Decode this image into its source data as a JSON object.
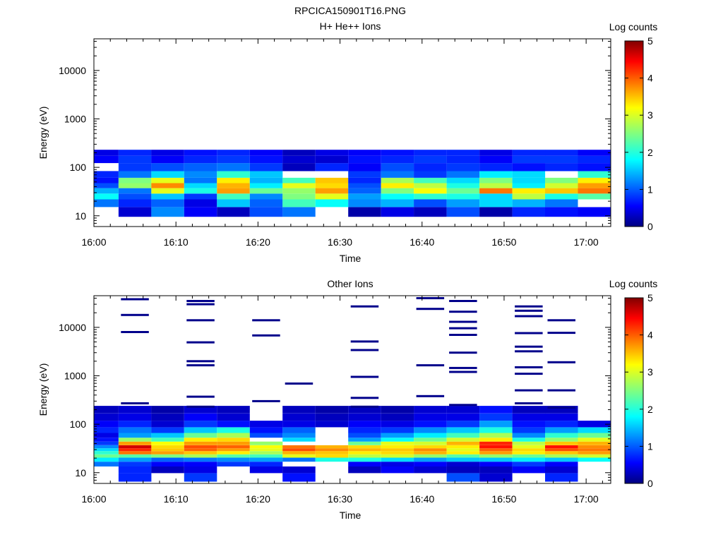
{
  "figure_title": "RPCICA150901T16.PNG",
  "colorbar": {
    "label": "Log counts",
    "ticks": [
      "0",
      "1",
      "2",
      "3",
      "4",
      "5"
    ],
    "range": [
      0,
      5
    ],
    "colormap": "jet"
  },
  "chart_data": [
    {
      "type": "heatmap",
      "title": "H+ He++ Ions",
      "xlabel": "Time",
      "ylabel": "Energy (eV)",
      "y_scale": "log",
      "ylim": [
        6,
        45000
      ],
      "xlim": [
        "16:00",
        "17:03"
      ],
      "x_ticks": [
        "16:00",
        "16:10",
        "16:20",
        "16:30",
        "16:40",
        "16:50",
        "17:00"
      ],
      "y_ticks": [
        "10",
        "100",
        "1000",
        "10000"
      ],
      "time_bins": [
        "16:01",
        "16:05",
        "16:09",
        "16:13",
        "16:17",
        "16:21",
        "16:25",
        "16:29",
        "16:33",
        "16:37",
        "16:41",
        "16:45",
        "16:49",
        "16:53",
        "16:57",
        "17:01"
      ],
      "time_bin_width_min": 4,
      "energy_bins_eV": [
        12,
        19,
        25,
        33,
        42,
        53,
        70,
        100,
        150,
        200
      ],
      "values": [
        [
          null,
          0.4,
          1.3,
          0.6,
          0.3,
          1.0,
          1.2,
          null,
          0.2,
          0.5,
          0.3,
          1.0,
          0.2,
          0.8,
          0.7,
          0.6
        ],
        [
          1.2,
          0.8,
          1.1,
          0.5,
          1.6,
          1.1,
          2.2,
          1.9,
          1.3,
          1.5,
          1.0,
          1.4,
          1.7,
          1.5,
          1.2,
          null
        ],
        [
          1.9,
          1.0,
          1.6,
          0.9,
          2.2,
          1.3,
          2.5,
          3.0,
          1.4,
          1.9,
          2.1,
          2.0,
          1.7,
          2.8,
          2.0,
          2.3
        ],
        [
          1.5,
          1.2,
          3.0,
          2.0,
          3.6,
          2.4,
          2.6,
          3.6,
          1.1,
          2.5,
          3.1,
          2.4,
          3.8,
          3.2,
          3.4,
          3.8
        ],
        [
          1.0,
          2.6,
          3.7,
          1.7,
          3.5,
          1.8,
          3.0,
          3.3,
          1.0,
          3.2,
          2.8,
          2.0,
          2.8,
          1.8,
          2.9,
          3.6
        ],
        [
          0.7,
          2.5,
          3.0,
          1.2,
          3.2,
          1.5,
          2.2,
          3.4,
          0.8,
          2.7,
          2.2,
          1.7,
          2.5,
          1.7,
          2.5,
          3.2
        ],
        [
          0.8,
          1.2,
          1.7,
          1.3,
          2.1,
          1.6,
          null,
          null,
          0.9,
          1.2,
          0.9,
          1.2,
          1.8,
          1.7,
          null,
          2.1
        ],
        [
          null,
          0.9,
          1.0,
          1.1,
          1.2,
          0.9,
          0.3,
          0.8,
          0.6,
          1.0,
          0.8,
          0.9,
          0.8,
          0.7,
          0.8,
          0.7
        ],
        [
          0.6,
          0.9,
          0.6,
          0.8,
          0.9,
          0.7,
          0.4,
          0.4,
          0.7,
          0.8,
          0.9,
          0.8,
          0.6,
          0.9,
          0.9,
          0.8
        ],
        [
          0.5,
          0.8,
          0.5,
          0.7,
          0.8,
          0.6,
          0.3,
          0.5,
          0.6,
          0.7,
          0.8,
          0.8,
          0.5,
          0.8,
          0.8,
          0.6
        ]
      ]
    },
    {
      "type": "heatmap",
      "title": "Other Ions",
      "xlabel": "Time",
      "ylabel": "Energy (eV)",
      "y_scale": "log",
      "ylim": [
        6,
        45000
      ],
      "xlim": [
        "16:00",
        "17:03"
      ],
      "x_ticks": [
        "16:00",
        "16:10",
        "16:20",
        "16:30",
        "16:40",
        "16:50",
        "17:00"
      ],
      "y_ticks": [
        "10",
        "100",
        "1000",
        "10000"
      ],
      "time_bins": [
        "16:01",
        "16:05",
        "16:09",
        "16:13",
        "16:17",
        "16:21",
        "16:25",
        "16:29",
        "16:33",
        "16:37",
        "16:41",
        "16:45",
        "16:49",
        "16:53",
        "16:57",
        "17:01"
      ],
      "time_bin_width_min": 4,
      "energy_bins_eV": [
        8,
        12,
        15,
        19,
        22,
        26,
        30,
        34,
        40,
        48,
        58,
        75,
        100,
        140,
        200
      ],
      "values": [
        [
          null,
          0.8,
          null,
          0.9,
          null,
          null,
          0.7,
          null,
          null,
          null,
          null,
          1.0,
          0.4,
          null,
          0.8,
          null
        ],
        [
          null,
          0.8,
          0.3,
          0.5,
          null,
          0.5,
          0.4,
          null,
          0.3,
          0.6,
          0.4,
          0.3,
          0.3,
          0.6,
          0.4,
          null
        ],
        [
          1.2,
          0.9,
          0.6,
          0.6,
          0.9,
          0.8,
          null,
          null,
          0.6,
          0.5,
          0.6,
          0.4,
          0.6,
          0.9,
          0.6,
          null
        ],
        [
          1.8,
          1.4,
          1.1,
          1.2,
          1.3,
          1.4,
          1.2,
          2.0,
          2.0,
          1.7,
          1.4,
          1.6,
          1.6,
          1.8,
          1.6,
          1.9
        ],
        [
          2.4,
          2.3,
          2.5,
          2.7,
          2.3,
          2.2,
          3.0,
          3.3,
          2.8,
          2.9,
          2.6,
          2.3,
          2.6,
          2.4,
          2.7,
          2.9
        ],
        [
          2.1,
          3.8,
          3.6,
          3.4,
          3.2,
          2.7,
          3.5,
          3.4,
          3.2,
          3.3,
          3.5,
          3.2,
          3.6,
          3.2,
          3.4,
          3.6
        ],
        [
          1.7,
          4.2,
          3.4,
          3.9,
          3.6,
          3.0,
          4.0,
          3.7,
          3.5,
          3.4,
          3.7,
          3.0,
          3.9,
          3.3,
          4.0,
          3.8
        ],
        [
          1.3,
          4.6,
          3.3,
          4.0,
          3.9,
          3.1,
          3.8,
          3.5,
          3.3,
          3.2,
          3.3,
          3.2,
          4.3,
          3.0,
          4.3,
          3.7
        ],
        [
          0.9,
          3.6,
          3.1,
          3.6,
          3.6,
          2.6,
          null,
          null,
          2.4,
          3.0,
          2.9,
          3.5,
          4.2,
          2.8,
          3.4,
          3.5
        ],
        [
          0.7,
          2.6,
          2.2,
          3.2,
          3.3,
          null,
          1.7,
          null,
          1.4,
          1.9,
          2.4,
          2.9,
          3.2,
          2.0,
          2.6,
          3.0
        ],
        [
          0.5,
          1.4,
          1.6,
          2.4,
          2.7,
          1.0,
          1.3,
          null,
          1.0,
          1.4,
          1.8,
          2.2,
          2.7,
          1.3,
          2.1,
          2.4
        ],
        [
          0.8,
          1.2,
          0.9,
          1.6,
          2.0,
          0.7,
          1.1,
          null,
          0.8,
          0.9,
          1.3,
          1.6,
          2.0,
          0.9,
          1.4,
          1.7
        ],
        [
          0.6,
          0.8,
          0.4,
          0.9,
          0.7,
          0.5,
          0.5,
          0.4,
          0.6,
          0.5,
          0.7,
          0.9,
          1.4,
          0.7,
          0.8,
          0.5
        ],
        [
          0.4,
          0.5,
          0.3,
          0.6,
          0.4,
          null,
          0.4,
          0.3,
          0.4,
          0.3,
          0.5,
          0.5,
          0.9,
          0.5,
          0.5,
          null
        ],
        [
          0.3,
          0.4,
          0.2,
          0.4,
          0.3,
          null,
          0.3,
          0.2,
          0.3,
          0.2,
          0.4,
          0.4,
          0.7,
          0.3,
          0.3,
          null
        ]
      ],
      "sparse_high_energy_bins": [
        {
          "time": "16:05",
          "energy_eV": [
            270,
            8000,
            18000,
            38000
          ]
        },
        {
          "time": "16:13",
          "energy_eV": [
            230,
            370,
            1650,
            2000,
            4900,
            14000,
            30000,
            35000
          ]
        },
        {
          "time": "16:21",
          "energy_eV": [
            300,
            6800,
            14000
          ]
        },
        {
          "time": "16:25",
          "energy_eV": [
            690
          ]
        },
        {
          "time": "16:33",
          "energy_eV": [
            230,
            350,
            950,
            3400,
            5100,
            27000
          ]
        },
        {
          "time": "16:41",
          "energy_eV": [
            380,
            1650,
            24000,
            40000
          ]
        },
        {
          "time": "16:45",
          "energy_eV": [
            250,
            1200,
            1450,
            3000,
            7000,
            9600,
            13000,
            21000,
            35000
          ]
        },
        {
          "time": "16:53",
          "energy_eV": [
            270,
            500,
            1100,
            1500,
            3200,
            4000,
            7600,
            17000,
            22000,
            27000
          ]
        },
        {
          "time": "16:57",
          "energy_eV": [
            220,
            500,
            1900,
            7700,
            14000
          ]
        }
      ]
    }
  ]
}
